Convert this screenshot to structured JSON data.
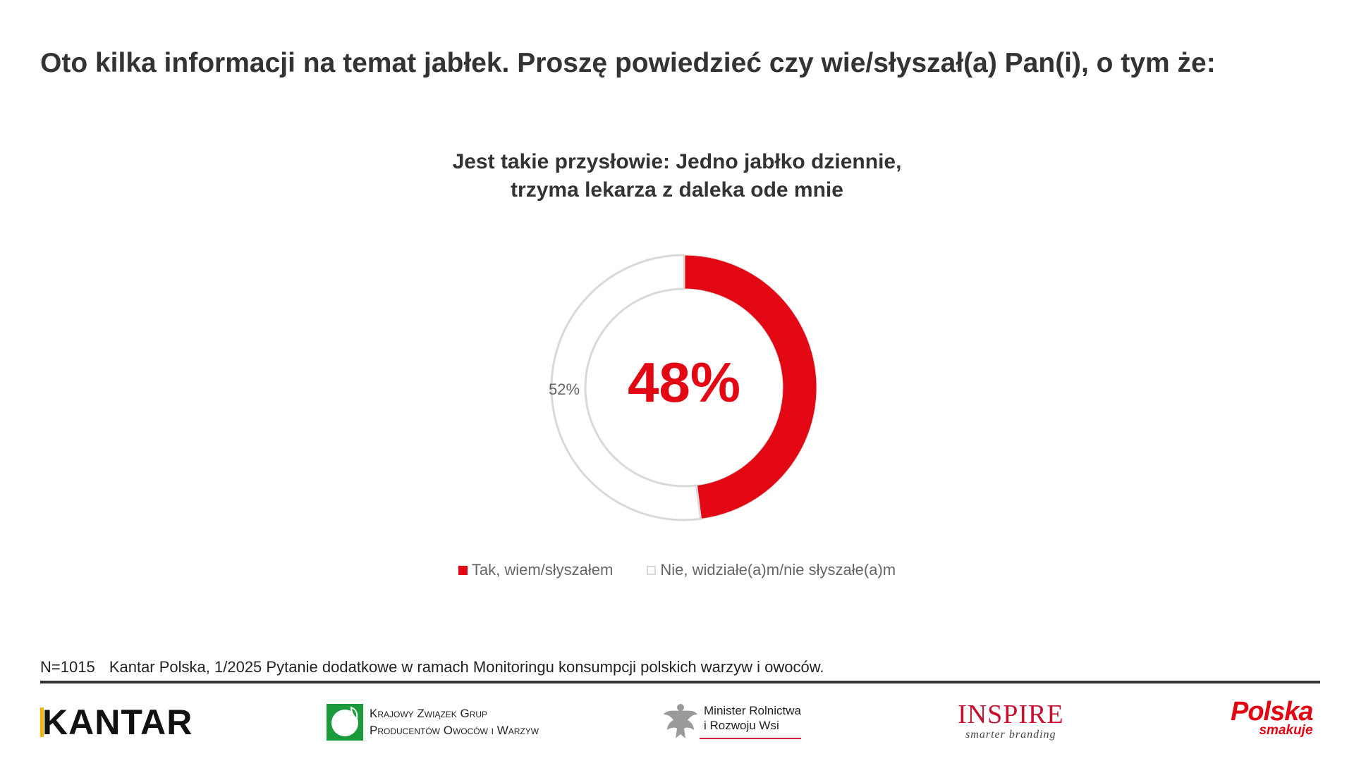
{
  "header": {
    "title": "Oto kilka informacji na temat jabłek. Proszę powiedzieć czy wie/słyszał(a) Pan(i), o tym że:"
  },
  "chart_data": {
    "type": "pie",
    "title_lines": [
      "Jest takie przysłowie: Jedno jabłko dziennie,",
      "trzyma lekarza z daleka ode mnie"
    ],
    "center_label": "48%",
    "slices": [
      {
        "label": "Tak, wiem/słyszałem",
        "value": 48,
        "data_label": "48%",
        "color": "#e30613"
      },
      {
        "label": "Nie, widziałe(a)m/nie słyszałe(a)m",
        "value": 52,
        "data_label": "52%",
        "color": "#ffffff",
        "stroke": "#d9d9d9"
      }
    ],
    "legend": [
      "Tak, wiem/słyszałem",
      "Nie, widziałe(a)m/nie słyszałe(a)m"
    ],
    "legend_position": "bottom"
  },
  "footer": {
    "sample": "N=1015",
    "source": "Kantar Polska, 1/2025 Pytanie dodatkowe w ramach Monitoringu konsumpcji polskich warzyw i owoców."
  },
  "logos": {
    "kantar": "KANTAR",
    "kzgp_line1": "Krajowy Związek Grup",
    "kzgp_line2": "Producentów Owoców i Warzyw",
    "minister_line1": "Minister Rolnictwa",
    "minister_line2": "i Rozwoju Wsi",
    "inspire": "INSPIRE",
    "inspire_tagline": "smarter branding",
    "polska": "Polska",
    "polska_tagline": "smakuje"
  }
}
